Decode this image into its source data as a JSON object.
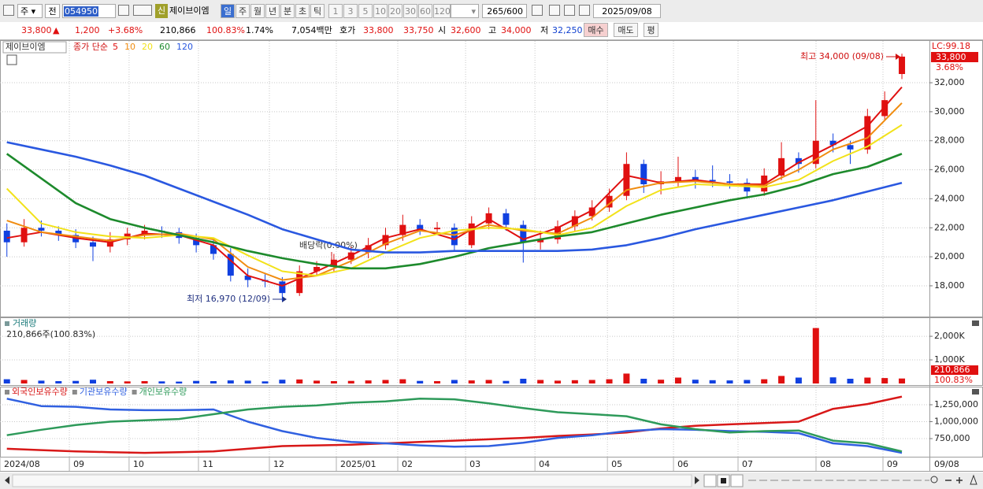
{
  "toolbar": {
    "market": "주",
    "prefix": "전",
    "code": "054950",
    "badge": "신",
    "name": "제이브이엠",
    "periods": [
      "일",
      "주",
      "월",
      "년",
      "분",
      "초",
      "틱"
    ],
    "intervals": [
      "1",
      "3",
      "5",
      "10",
      "20",
      "30",
      "60",
      "120"
    ],
    "count": "265/600",
    "date": "2025/09/08"
  },
  "quote": {
    "price": "33,800",
    "arrow": "▲",
    "change": "1,200",
    "pct": "+3.68%",
    "volume": "210,866",
    "vol_ratio": "100.83%",
    "turnover": "1.74%",
    "amount": "7,054백만",
    "bid_label": "호가",
    "ask": "33,800",
    "bid": "33,750",
    "open_label": "시",
    "open": "32,600",
    "high_label": "고",
    "high": "34,000",
    "low_label": "저",
    "low": "32,250",
    "buy": "매수",
    "sell": "매도",
    "avg": "평"
  },
  "chart_data": [
    {
      "type": "candlestick",
      "name": "제이브이엠",
      "legend_title": "종가 단순",
      "lc_label": "LC:99.18",
      "last_price": "33,800",
      "last_change": "3.68%",
      "annotations": [
        "최고 34,000 (09/08)",
        "최저 16,970 (12/09)",
        "배당락(0.00%)"
      ],
      "xlim": [
        -0.4,
        53.6
      ],
      "ylim": [
        15880,
        34880
      ],
      "yticks": [
        {
          "value": 18000,
          "label": "18,000"
        },
        {
          "value": 20000,
          "label": "20,000"
        },
        {
          "value": 22000,
          "label": "22,000"
        },
        {
          "value": 24000,
          "label": "24,000"
        },
        {
          "value": 26000,
          "label": "26,000"
        },
        {
          "value": 28000,
          "label": "28,000"
        },
        {
          "value": 30000,
          "label": "30,000"
        },
        {
          "value": 32000,
          "label": "32,000"
        }
      ],
      "up_color": "#e01010",
      "down_color": "#1040e0",
      "grid": true,
      "candles": {
        "x": [
          0,
          1,
          2,
          3,
          4,
          5,
          6,
          7,
          8,
          9,
          10,
          11,
          12,
          13,
          14,
          15,
          16,
          17,
          18,
          19,
          20,
          21,
          22,
          23,
          24,
          25,
          26,
          27,
          28,
          29,
          30,
          31,
          32,
          33,
          34,
          35,
          36,
          37,
          38,
          39,
          40,
          41,
          42,
          43,
          44,
          45,
          46,
          47,
          48,
          49,
          50,
          51,
          52
        ],
        "open": [
          21800,
          21000,
          22000,
          21800,
          21500,
          21000,
          20700,
          21200,
          21600,
          21800,
          21700,
          21300,
          20800,
          20200,
          18700,
          18400,
          18300,
          17500,
          19000,
          19300,
          19800,
          20300,
          20800,
          21500,
          22200,
          21900,
          22000,
          20800,
          22300,
          23000,
          22200,
          21000,
          21200,
          22100,
          22800,
          23400,
          24200,
          26400,
          25000,
          25200,
          25500,
          25300,
          25200,
          25100,
          24500,
          25600,
          26800,
          26400,
          28000,
          27700,
          27400,
          29700,
          32600
        ],
        "high": [
          22300,
          22600,
          22500,
          22100,
          21900,
          21400,
          21700,
          22000,
          22200,
          22100,
          22000,
          21600,
          21200,
          20600,
          19200,
          18800,
          18600,
          19400,
          19700,
          20200,
          20700,
          21300,
          22000,
          22900,
          22600,
          22400,
          22300,
          22800,
          23400,
          23300,
          22500,
          21800,
          22500,
          23200,
          23900,
          24700,
          27200,
          26700,
          25900,
          26900,
          26000,
          26300,
          25700,
          25400,
          26100,
          27900,
          27200,
          30800,
          28500,
          28000,
          30200,
          31400,
          34000
        ],
        "low": [
          20000,
          20700,
          21400,
          21100,
          20600,
          19700,
          20300,
          20800,
          21200,
          21300,
          20900,
          20300,
          19800,
          18300,
          17900,
          17900,
          16970,
          17300,
          18700,
          18900,
          19500,
          19900,
          20500,
          21100,
          21500,
          21500,
          20400,
          20600,
          21900,
          21800,
          19600,
          20500,
          20900,
          21800,
          22500,
          23100,
          23900,
          24400,
          24300,
          24800,
          24700,
          24800,
          24700,
          24100,
          24200,
          25300,
          25800,
          26100,
          27200,
          26400,
          27100,
          29400,
          32250
        ],
        "close": [
          21000,
          22000,
          21800,
          21500,
          21000,
          20700,
          21200,
          21600,
          21800,
          21700,
          21300,
          20800,
          20200,
          18700,
          18400,
          18300,
          17500,
          19000,
          19300,
          19800,
          20300,
          20800,
          21500,
          22200,
          21900,
          22000,
          20800,
          22300,
          23000,
          22200,
          21000,
          21200,
          22100,
          22800,
          23400,
          24200,
          26400,
          25000,
          25200,
          25500,
          25300,
          25200,
          25100,
          24500,
          25600,
          26800,
          26400,
          28000,
          27700,
          27400,
          29700,
          30800,
          33800
        ]
      },
      "x": [
        0,
        2,
        4,
        6,
        8,
        10,
        12,
        14,
        16,
        18,
        20,
        22,
        24,
        26,
        28,
        30,
        32,
        34,
        36,
        38,
        40,
        42,
        44,
        46,
        48,
        50,
        52
      ],
      "series": [
        {
          "name": "5",
          "color": "#e01010",
          "values": [
            21300,
            21700,
            21300,
            21000,
            21600,
            21500,
            20800,
            18700,
            18000,
            19000,
            20100,
            21300,
            21900,
            21200,
            22600,
            21200,
            22000,
            23200,
            25600,
            25100,
            25300,
            25000,
            25000,
            26500,
            27700,
            29000,
            31700
          ]
        },
        {
          "name": "10",
          "color": "#f08c10",
          "values": [
            22500,
            21700,
            21400,
            21100,
            21500,
            21600,
            21200,
            19300,
            18400,
            18700,
            19700,
            20900,
            21800,
            21500,
            22200,
            21800,
            21600,
            22700,
            24600,
            25100,
            25200,
            25000,
            24900,
            26000,
            27400,
            28200,
            30600
          ]
        },
        {
          "name": "20",
          "color": "#f2e21a",
          "values": [
            24700,
            22300,
            21700,
            21400,
            21300,
            21500,
            21300,
            20100,
            19000,
            18700,
            19200,
            20300,
            21300,
            21800,
            22000,
            21900,
            21500,
            22000,
            23500,
            24600,
            25000,
            24900,
            24800,
            25300,
            26600,
            27600,
            29100
          ]
        },
        {
          "name": "60",
          "color": "#1d8a2c",
          "values": [
            27100,
            25400,
            23700,
            22600,
            22000,
            21500,
            21000,
            20400,
            19900,
            19500,
            19200,
            19200,
            19500,
            20000,
            20600,
            21000,
            21400,
            21700,
            22300,
            22900,
            23400,
            23900,
            24300,
            24900,
            25700,
            26200,
            27100
          ]
        },
        {
          "name": "120",
          "color": "#2a58e0",
          "values": [
            27900,
            27400,
            26900,
            26300,
            25600,
            24700,
            23800,
            22900,
            21900,
            21200,
            20500,
            20300,
            20300,
            20400,
            20400,
            20400,
            20400,
            20500,
            20800,
            21300,
            21900,
            22400,
            22900,
            23400,
            23900,
            24500,
            25100
          ]
        }
      ]
    },
    {
      "type": "bar",
      "title": "거래량",
      "info": "210,866주(100.83%)",
      "last_label": "210,866",
      "last_ratio": "100.83%",
      "xlim": [
        -0.4,
        53.6
      ],
      "ylim": [
        0,
        2770000
      ],
      "yticks": [
        {
          "value": 1000000,
          "label": "1,000K"
        },
        {
          "value": 2000000,
          "label": "2,000K"
        }
      ],
      "x": [
        0,
        1,
        2,
        3,
        4,
        5,
        6,
        7,
        8,
        9,
        10,
        11,
        12,
        13,
        14,
        15,
        16,
        17,
        18,
        19,
        20,
        21,
        22,
        23,
        24,
        25,
        26,
        27,
        28,
        29,
        30,
        31,
        32,
        33,
        34,
        35,
        36,
        37,
        38,
        39,
        40,
        41,
        42,
        43,
        44,
        45,
        46,
        47,
        48,
        49,
        50,
        51,
        52
      ],
      "values": [
        180000,
        150000,
        120000,
        100000,
        110000,
        160000,
        100000,
        90000,
        100000,
        90000,
        80000,
        110000,
        100000,
        130000,
        120000,
        90000,
        160000,
        170000,
        120000,
        100000,
        110000,
        130000,
        150000,
        180000,
        110000,
        100000,
        150000,
        130000,
        150000,
        110000,
        200000,
        150000,
        120000,
        140000,
        150000,
        180000,
        420000,
        200000,
        160000,
        250000,
        160000,
        140000,
        130000,
        150000,
        180000,
        320000,
        250000,
        2350000,
        260000,
        200000,
        250000,
        230000,
        210866
      ]
    },
    {
      "type": "line",
      "xlim": [
        -0.4,
        53.6
      ],
      "ylim": [
        482600,
        1505800
      ],
      "x_end_label": "09/08",
      "yticks": [
        {
          "value": 750000,
          "label": "750,000"
        },
        {
          "value": 1000000,
          "label": "1,000,000"
        },
        {
          "value": 1250000,
          "label": "1,250,000"
        }
      ],
      "xticks": [
        {
          "value": -0.4,
          "label": "2024/08"
        },
        {
          "value": 3.63,
          "label": "09"
        },
        {
          "value": 7.1,
          "label": "10"
        },
        {
          "value": 11.13,
          "label": "11"
        },
        {
          "value": 15.25,
          "label": "12"
        },
        {
          "value": 19.14,
          "label": "2025/01"
        },
        {
          "value": 22.71,
          "label": "02"
        },
        {
          "value": 26.65,
          "label": "03"
        },
        {
          "value": 30.68,
          "label": "04"
        },
        {
          "value": 34.89,
          "label": "05"
        },
        {
          "value": 38.73,
          "label": "06"
        },
        {
          "value": 42.48,
          "label": "07"
        },
        {
          "value": 47.01,
          "label": "08"
        },
        {
          "value": 50.9,
          "label": "09"
        }
      ],
      "x": [
        0,
        2,
        4,
        6,
        8,
        10,
        12,
        14,
        16,
        18,
        20,
        22,
        24,
        26,
        28,
        30,
        32,
        34,
        36,
        38,
        40,
        42,
        44,
        46,
        48,
        50,
        52
      ],
      "series": [
        {
          "name": "외국인보유수량",
          "color": "#d81818",
          "values": [
            600000,
            580000,
            560000,
            550000,
            540000,
            550000,
            560000,
            600000,
            640000,
            650000,
            660000,
            680000,
            700000,
            720000,
            740000,
            760000,
            790000,
            810000,
            840000,
            900000,
            940000,
            960000,
            980000,
            1000000,
            1190000,
            1260000,
            1370000
          ]
        },
        {
          "name": "기관보유수량",
          "color": "#3060e0",
          "values": [
            1340000,
            1230000,
            1220000,
            1180000,
            1170000,
            1170000,
            1180000,
            1000000,
            860000,
            760000,
            700000,
            680000,
            650000,
            630000,
            640000,
            690000,
            760000,
            800000,
            860000,
            890000,
            880000,
            860000,
            850000,
            830000,
            680000,
            640000,
            540000
          ]
        },
        {
          "name": "개인보유수량",
          "color": "#2e9a5a",
          "values": [
            800000,
            880000,
            950000,
            1000000,
            1020000,
            1040000,
            1110000,
            1180000,
            1220000,
            1240000,
            1280000,
            1300000,
            1340000,
            1330000,
            1270000,
            1200000,
            1140000,
            1110000,
            1080000,
            960000,
            890000,
            840000,
            860000,
            870000,
            720000,
            680000,
            560000
          ]
        }
      ]
    }
  ]
}
